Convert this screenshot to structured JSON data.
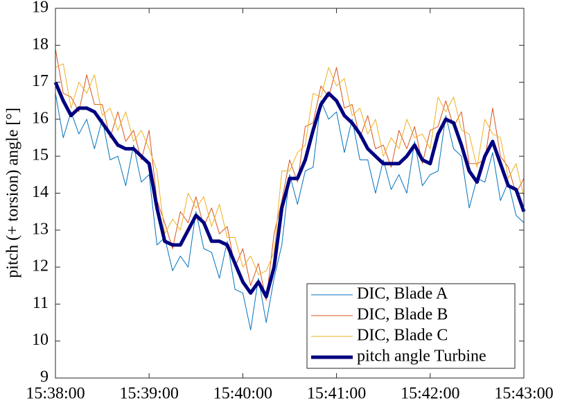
{
  "chart_data": {
    "type": "line",
    "y_label": "pitch (+ torsion) angle [°]",
    "x": [
      "15:38:00",
      "15:38:05",
      "15:38:10",
      "15:38:15",
      "15:38:20",
      "15:38:25",
      "15:38:30",
      "15:38:35",
      "15:38:40",
      "15:38:45",
      "15:38:50",
      "15:38:55",
      "15:39:00",
      "15:39:05",
      "15:39:10",
      "15:39:15",
      "15:39:20",
      "15:39:25",
      "15:39:30",
      "15:39:35",
      "15:39:40",
      "15:39:45",
      "15:39:50",
      "15:39:55",
      "15:40:00",
      "15:40:05",
      "15:40:10",
      "15:40:15",
      "15:40:20",
      "15:40:25",
      "15:40:30",
      "15:40:35",
      "15:40:40",
      "15:40:45",
      "15:40:50",
      "15:40:55",
      "15:41:00",
      "15:41:05",
      "15:41:10",
      "15:41:15",
      "15:41:20",
      "15:41:25",
      "15:41:30",
      "15:41:35",
      "15:41:40",
      "15:41:45",
      "15:41:50",
      "15:41:55",
      "15:42:00",
      "15:42:05",
      "15:42:10",
      "15:42:15",
      "15:42:20",
      "15:42:25",
      "15:42:30",
      "15:42:35",
      "15:42:40",
      "15:42:45",
      "15:42:50",
      "15:42:55",
      "15:43:00"
    ],
    "series": [
      {
        "name": "DIC, Blade A",
        "color": "#0072bd",
        "width": 1,
        "values": [
          16.7,
          15.5,
          16.2,
          15.6,
          16.0,
          15.2,
          16.0,
          14.9,
          15.0,
          14.2,
          15.3,
          14.3,
          14.5,
          12.6,
          12.8,
          11.9,
          12.3,
          12.0,
          13.5,
          12.5,
          12.4,
          11.7,
          12.7,
          11.4,
          11.3,
          10.3,
          11.7,
          10.5,
          11.7,
          12.6,
          14.5,
          13.7,
          14.6,
          14.7,
          16.5,
          16.0,
          16.2,
          15.1,
          16.0,
          14.9,
          14.9,
          14.0,
          14.9,
          14.1,
          14.5,
          14.0,
          15.4,
          14.2,
          14.5,
          14.6,
          16.1,
          15.2,
          15.0,
          13.6,
          14.4,
          14.3,
          15.1,
          13.8,
          14.3,
          13.4,
          13.2
        ]
      },
      {
        "name": "DIC, Blade B",
        "color": "#d95319",
        "width": 1,
        "values": [
          17.9,
          16.7,
          16.6,
          16.2,
          17.2,
          16.4,
          16.4,
          15.5,
          16.2,
          15.4,
          15.7,
          14.9,
          15.7,
          13.8,
          13.2,
          12.5,
          13.5,
          13.2,
          13.9,
          13.1,
          13.6,
          12.9,
          13.1,
          12.0,
          12.5,
          11.5,
          12.1,
          11.1,
          12.9,
          13.8,
          14.9,
          14.3,
          15.8,
          15.9,
          16.9,
          16.6,
          17.4,
          16.3,
          16.4,
          15.5,
          16.1,
          15.2,
          15.3,
          14.7,
          15.7,
          15.2,
          15.8,
          14.8,
          15.7,
          15.8,
          16.5,
          15.8,
          16.2,
          14.8,
          14.8,
          14.9,
          16.3,
          15.0,
          14.7,
          14.0,
          14.4
        ]
      },
      {
        "name": "DIC, Blade C",
        "color": "#edb120",
        "width": 1,
        "values": [
          17.4,
          17.5,
          16.3,
          17.0,
          16.7,
          17.2,
          16.1,
          16.3,
          15.7,
          16.2,
          15.4,
          15.7,
          15.2,
          14.6,
          12.9,
          13.3,
          13.0,
          14.0,
          13.6,
          13.9,
          13.1,
          13.7,
          12.8,
          12.8,
          12.0,
          12.3,
          11.8,
          11.9,
          12.4,
          14.6,
          14.6,
          15.1,
          15.3,
          16.7,
          16.6,
          17.4,
          16.9,
          17.1,
          16.1,
          16.3,
          15.6,
          16.0,
          15.0,
          15.5,
          15.2,
          16.0,
          15.5,
          15.6,
          15.2,
          16.6,
          16.2,
          16.6,
          15.7,
          15.6,
          14.7,
          16.0,
          15.6,
          15.5,
          14.4,
          14.8,
          13.9
        ]
      },
      {
        "name": "pitch angle Turbine",
        "color": "#000080",
        "width": 5,
        "values": [
          17.0,
          16.5,
          16.1,
          16.3,
          16.3,
          16.2,
          15.9,
          15.6,
          15.3,
          15.2,
          15.2,
          15.0,
          14.8,
          13.6,
          12.7,
          12.6,
          12.6,
          13.0,
          13.4,
          13.2,
          12.7,
          12.7,
          12.6,
          12.1,
          11.6,
          11.3,
          11.6,
          11.2,
          12.0,
          13.6,
          14.4,
          14.4,
          14.9,
          15.7,
          16.4,
          16.7,
          16.5,
          16.1,
          15.9,
          15.6,
          15.2,
          15.0,
          14.8,
          14.8,
          14.8,
          15.0,
          15.3,
          14.9,
          14.8,
          15.6,
          16.0,
          15.9,
          15.3,
          14.6,
          14.3,
          15.0,
          15.4,
          14.8,
          14.2,
          14.1,
          13.5
        ]
      }
    ],
    "xlim": [
      "15:38:00",
      "15:43:00"
    ],
    "xticks": [
      "15:38:00",
      "15:39:00",
      "15:40:00",
      "15:41:00",
      "15:42:00",
      "15:43:00"
    ],
    "ylim": [
      9,
      19
    ],
    "yticks": [
      9,
      10,
      11,
      12,
      13,
      14,
      15,
      16,
      17,
      18,
      19
    ],
    "legend": "lower-right"
  }
}
